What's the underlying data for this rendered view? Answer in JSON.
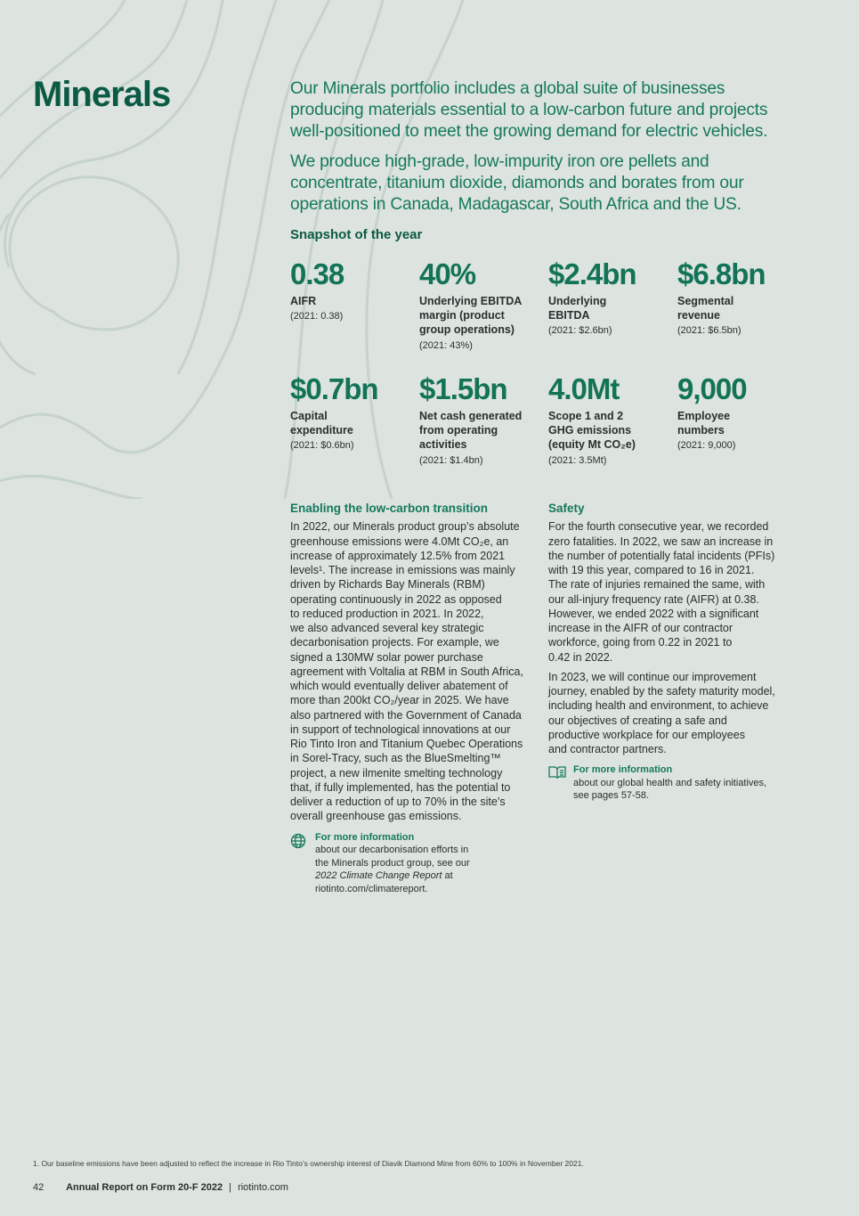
{
  "page": {
    "title": "Minerals",
    "intro": [
      [
        "Our Minerals portfolio includes a global suite of businesses",
        "producing materials essential to a low-carbon future and projects",
        "well-positioned to meet the growing demand for electric vehicles."
      ],
      [
        "We produce high-grade, low-impurity iron ore pellets and",
        "concentrate, titanium dioxide, diamonds and borates from our",
        "operations in Canada, Madagascar, South Africa and the US."
      ]
    ],
    "snapshot_heading": "Snapshot of the year",
    "stats": [
      {
        "value": "0.38",
        "label": [
          "AIFR"
        ],
        "prev": "(2021: 0.38)"
      },
      {
        "value": "40%",
        "label": [
          "Underlying EBITDA",
          "margin (product",
          "group operations)"
        ],
        "prev": "(2021: 43%)"
      },
      {
        "value": "$2.4bn",
        "label": [
          "Underlying",
          "EBITDA"
        ],
        "prev": "(2021: $2.6bn)"
      },
      {
        "value": "$6.8bn",
        "label": [
          "Segmental",
          "revenue"
        ],
        "prev": "(2021: $6.5bn)"
      },
      {
        "value": "$0.7bn",
        "label": [
          "Capital",
          "expenditure"
        ],
        "prev": "(2021: $0.6bn)"
      },
      {
        "value": "$1.5bn",
        "label": [
          "Net cash generated",
          "from operating",
          "activities"
        ],
        "prev": "(2021: $1.4bn)"
      },
      {
        "value": "4.0Mt",
        "label": [
          "Scope 1 and 2",
          "GHG emissions",
          "(equity Mt CO₂e)"
        ],
        "prev": "(2021: 3.5Mt)"
      },
      {
        "value": "9,000",
        "label": [
          "Employee",
          "numbers"
        ],
        "prev": "(2021: 9,000)"
      }
    ],
    "low_carbon": {
      "heading": "Enabling the low-carbon transition",
      "lines": [
        "In 2022, our Minerals product group’s absolute",
        "greenhouse emissions were 4.0Mt CO₂e, an",
        "increase of approximately 12.5% from 2021",
        "levels¹. The increase in emissions was mainly",
        "driven by Richards Bay Minerals (RBM)",
        "operating continuously in 2022 as opposed",
        "to reduced production in 2021. In 2022,",
        "we also advanced several key strategic",
        "decarbonisation projects. For example, we",
        "signed a 130MW solar power purchase",
        "agreement with Voltalia at RBM in South Africa,",
        "which would eventually deliver abatement of",
        "more than 200kt CO₂/year in 2025. We have",
        "also partnered with the Government of Canada",
        "in support of technological innovations at our",
        "Rio Tinto Iron and Titanium Quebec Operations",
        "in Sorel-Tracy, such as the BlueSmelting™",
        "project, a new ilmenite smelting technology",
        "that, if fully implemented, has the potential to",
        "deliver a reduction of up to 70% in the site’s",
        "overall greenhouse gas emissions."
      ],
      "more_heading": "For more information",
      "more_lines": [
        "about our decarbonisation efforts in",
        "the Minerals product group, see our"
      ],
      "more_report": "2022 Climate Change Report",
      "more_at": " at",
      "more_url": "riotinto.com/climatereport.",
      "icon": "globe-icon"
    },
    "safety": {
      "heading": "Safety",
      "p1": [
        "For the fourth consecutive year, we recorded",
        "zero fatalities. In 2022, we saw an increase in",
        "the number of potentially fatal incidents (PFIs)",
        "with 19 this year, compared to 16 in 2021.",
        "The rate of injuries remained the same, with",
        "our all-injury frequency rate (AIFR) at 0.38.",
        "However, we ended 2022 with a significant",
        "increase in the AIFR of our contractor",
        "workforce, going from 0.22 in 2021 to",
        "0.42 in 2022."
      ],
      "p2": [
        "In 2023, we will continue our improvement",
        "journey, enabled by the safety maturity model,",
        "including health and environment, to achieve",
        "our objectives of creating a safe and",
        "productive workplace for our employees",
        "and contractor partners."
      ],
      "more_heading": "For more information",
      "more_lines": [
        "about our global health and safety initiatives,",
        "see pages 57-58."
      ],
      "icon": "book-icon"
    },
    "footnote": "1.   Our baseline emissions have been adjusted to reflect the increase in Rio Tinto’s ownership interest of Diavik Diamond Mine from 60% to 100% in November 2021.",
    "footer": {
      "page_number": "42",
      "report": "Annual Report on Form 20-F 2022",
      "separator": "|",
      "site": "riotinto.com"
    },
    "colors": {
      "background": "#dde3df",
      "title": "#0b5a44",
      "accent": "#15795d"
    }
  }
}
